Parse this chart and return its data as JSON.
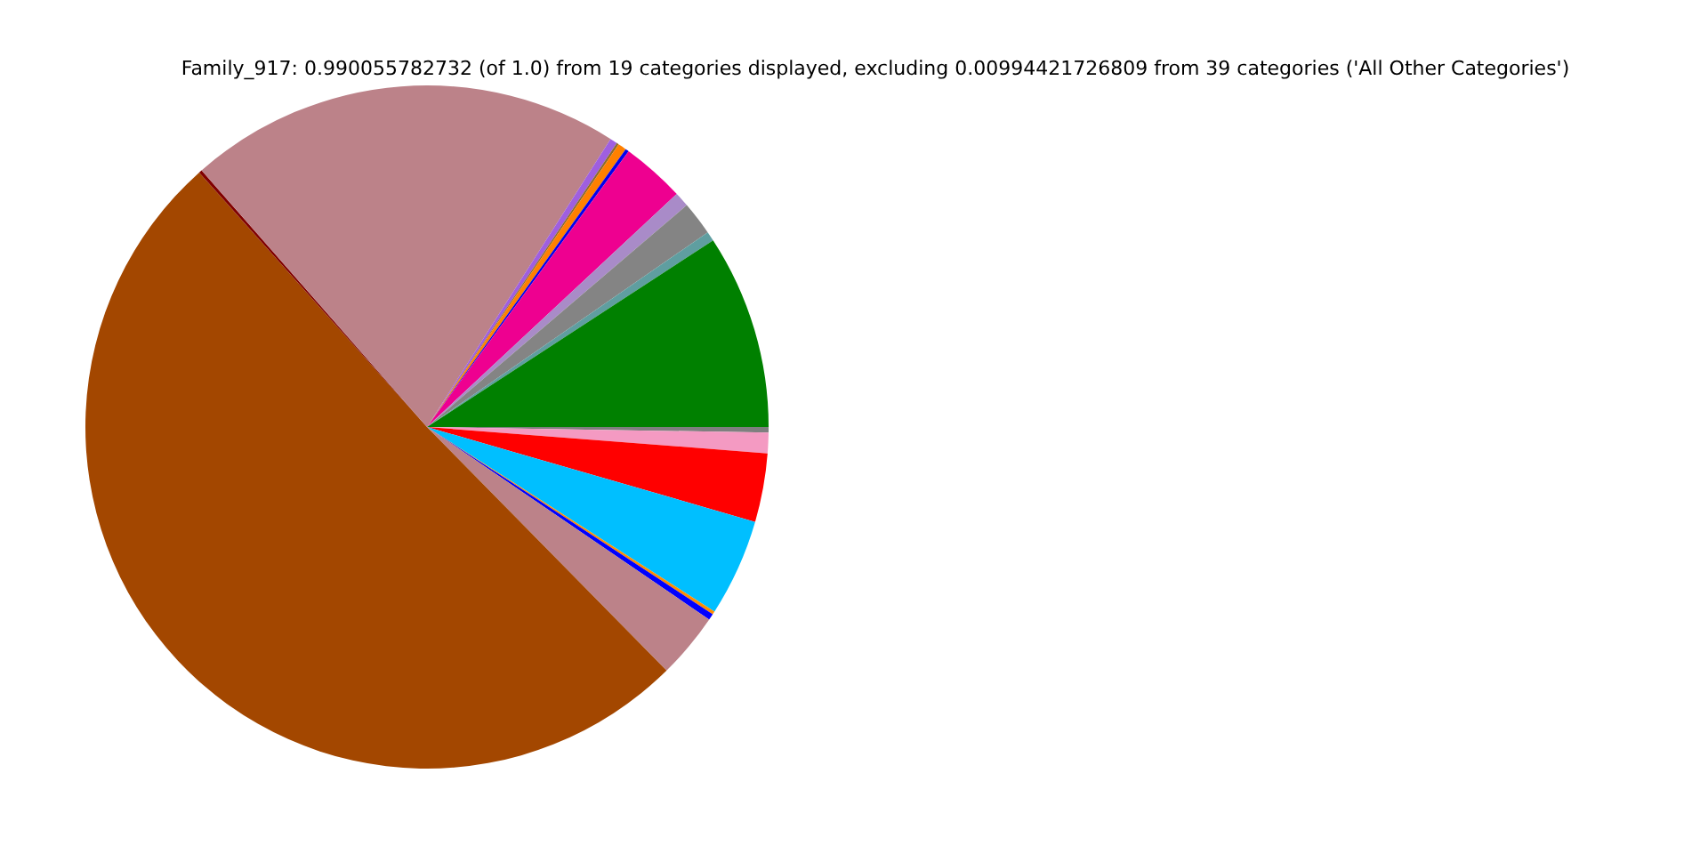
{
  "chart_data": {
    "type": "pie",
    "title": "Family_917: 0.990055782732 (of 1.0) from 19 categories displayed, excluding 0.00994421726809 from 39 categories ('All Other Categories')",
    "categories": [
      null,
      null,
      null,
      null,
      null,
      null,
      null,
      null,
      null,
      null,
      null,
      null,
      null,
      null,
      null,
      null,
      null,
      null,
      null
    ],
    "values": [
      0.26,
      0.97,
      3.25,
      4.6,
      0.15,
      0.3,
      3.1,
      50.75,
      0.15,
      20.5,
      0.35,
      0.1,
      0.4,
      0.17,
      3.0,
      0.7,
      1.6,
      0.45,
      9.2
    ],
    "colors": [
      "#7f7f7f",
      "#f49ac2",
      "#ff0000",
      "#00bfff",
      "#ff8c00",
      "#0000ff",
      "#bc8289",
      "#a34700",
      "#800000",
      "#bc8289",
      "#9f5fe0",
      "#8b6b2b",
      "#ff8000",
      "#0000ee",
      "#ee0090",
      "#a98bc8",
      "#848484",
      "#5f9ea0",
      "#008000"
    ],
    "legend": false
  }
}
